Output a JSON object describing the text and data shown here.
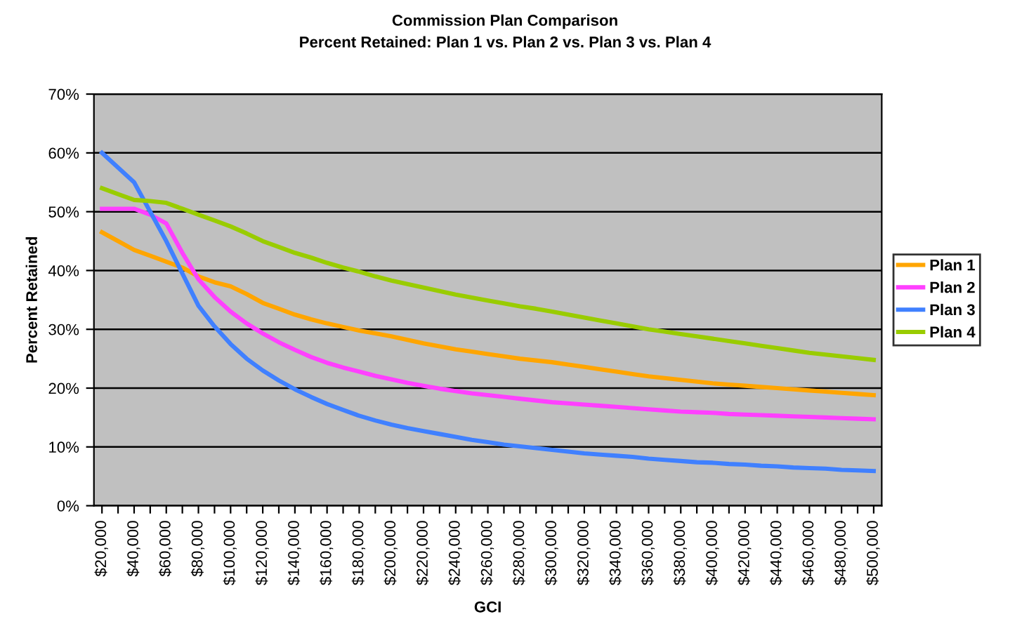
{
  "chart_data": {
    "type": "line",
    "title": "Commission Plan Comparison",
    "subtitle": "Percent Retained: Plan 1 vs. Plan 2 vs. Plan 3 vs. Plan 4",
    "xlabel": "GCI",
    "ylabel": "Percent Retained",
    "categories": [
      "$20,000",
      null,
      "$40,000",
      null,
      "$60,000",
      null,
      "$80,000",
      null,
      "$100,000",
      null,
      "$120,000",
      null,
      "$140,000",
      null,
      "$160,000",
      null,
      "$180,000",
      null,
      "$200,000",
      null,
      "$220,000",
      null,
      "$240,000",
      null,
      "$260,000",
      null,
      "$280,000",
      null,
      "$300,000",
      null,
      "$320,000",
      null,
      "$340,000",
      null,
      "$360,000",
      null,
      "$380,000",
      null,
      "$400,000",
      null,
      "$420,000",
      null,
      "$440,000",
      null,
      "$460,000",
      null,
      "$480,000",
      null,
      "$500,000"
    ],
    "series": [
      {
        "name": "Plan 1",
        "color": "#ffa500",
        "values": [
          46.5,
          45,
          43.5,
          42.5,
          41.5,
          40.5,
          39,
          38,
          37.3,
          36,
          34.5,
          33.5,
          32.5,
          31.7,
          31,
          30.4,
          29.8,
          29.3,
          28.8,
          28.2,
          27.6,
          27.1,
          26.6,
          26.2,
          25.8,
          25.4,
          25.0,
          24.7,
          24.4,
          24.0,
          23.6,
          23.2,
          22.8,
          22.4,
          22.0,
          21.7,
          21.4,
          21.1,
          20.8,
          20.6,
          20.4,
          20.2,
          20.0,
          19.8,
          19.6,
          19.4,
          19.2,
          19.0,
          18.8
        ]
      },
      {
        "name": "Plan 2",
        "color": "#ff40ff",
        "values": [
          50.5,
          50.5,
          50.5,
          49.5,
          48,
          43,
          38.5,
          35.5,
          33,
          31,
          29.3,
          27.8,
          26.5,
          25.3,
          24.3,
          23.5,
          22.8,
          22.1,
          21.5,
          20.9,
          20.4,
          19.9,
          19.5,
          19.1,
          18.8,
          18.5,
          18.2,
          17.9,
          17.6,
          17.4,
          17.2,
          17.0,
          16.8,
          16.6,
          16.4,
          16.2,
          16.0,
          15.9,
          15.8,
          15.6,
          15.5,
          15.4,
          15.3,
          15.2,
          15.1,
          15.0,
          14.9,
          14.8,
          14.7
        ]
      },
      {
        "name": "Plan 3",
        "color": "#4080ff",
        "values": [
          60,
          57.5,
          55,
          50,
          45,
          39.5,
          34,
          30.5,
          27.5,
          25,
          23,
          21.3,
          19.8,
          18.5,
          17.3,
          16.3,
          15.3,
          14.5,
          13.8,
          13.2,
          12.7,
          12.2,
          11.7,
          11.2,
          10.8,
          10.4,
          10.1,
          9.8,
          9.5,
          9.2,
          8.9,
          8.7,
          8.5,
          8.3,
          8.0,
          7.8,
          7.6,
          7.4,
          7.3,
          7.1,
          7.0,
          6.8,
          6.7,
          6.5,
          6.4,
          6.3,
          6.1,
          6.0,
          5.9
        ]
      },
      {
        "name": "Plan 4",
        "color": "#99cc00",
        "values": [
          54,
          53,
          52,
          51.8,
          51.5,
          50.5,
          49.5,
          48.5,
          47.5,
          46.3,
          45,
          44,
          43,
          42.2,
          41.3,
          40.5,
          39.8,
          39,
          38.3,
          37.7,
          37.1,
          36.5,
          35.9,
          35.4,
          34.9,
          34.4,
          33.9,
          33.5,
          33.0,
          32.5,
          32.0,
          31.5,
          31.0,
          30.5,
          30.0,
          29.6,
          29.2,
          28.8,
          28.4,
          28.0,
          27.6,
          27.2,
          26.8,
          26.4,
          26.0,
          25.7,
          25.4,
          25.1,
          24.8
        ]
      }
    ],
    "ylim": [
      0,
      70
    ],
    "yticks": [
      {
        "value": 0,
        "label": "0%"
      },
      {
        "value": 10,
        "label": "10%"
      },
      {
        "value": 20,
        "label": "20%"
      },
      {
        "value": 30,
        "label": "30%"
      },
      {
        "value": 40,
        "label": "40%"
      },
      {
        "value": 50,
        "label": "50%"
      },
      {
        "value": 60,
        "label": "60%"
      },
      {
        "value": 70,
        "label": "70%"
      }
    ],
    "grid": "y",
    "legend": "right",
    "marker": "none",
    "line_style": "solid"
  }
}
